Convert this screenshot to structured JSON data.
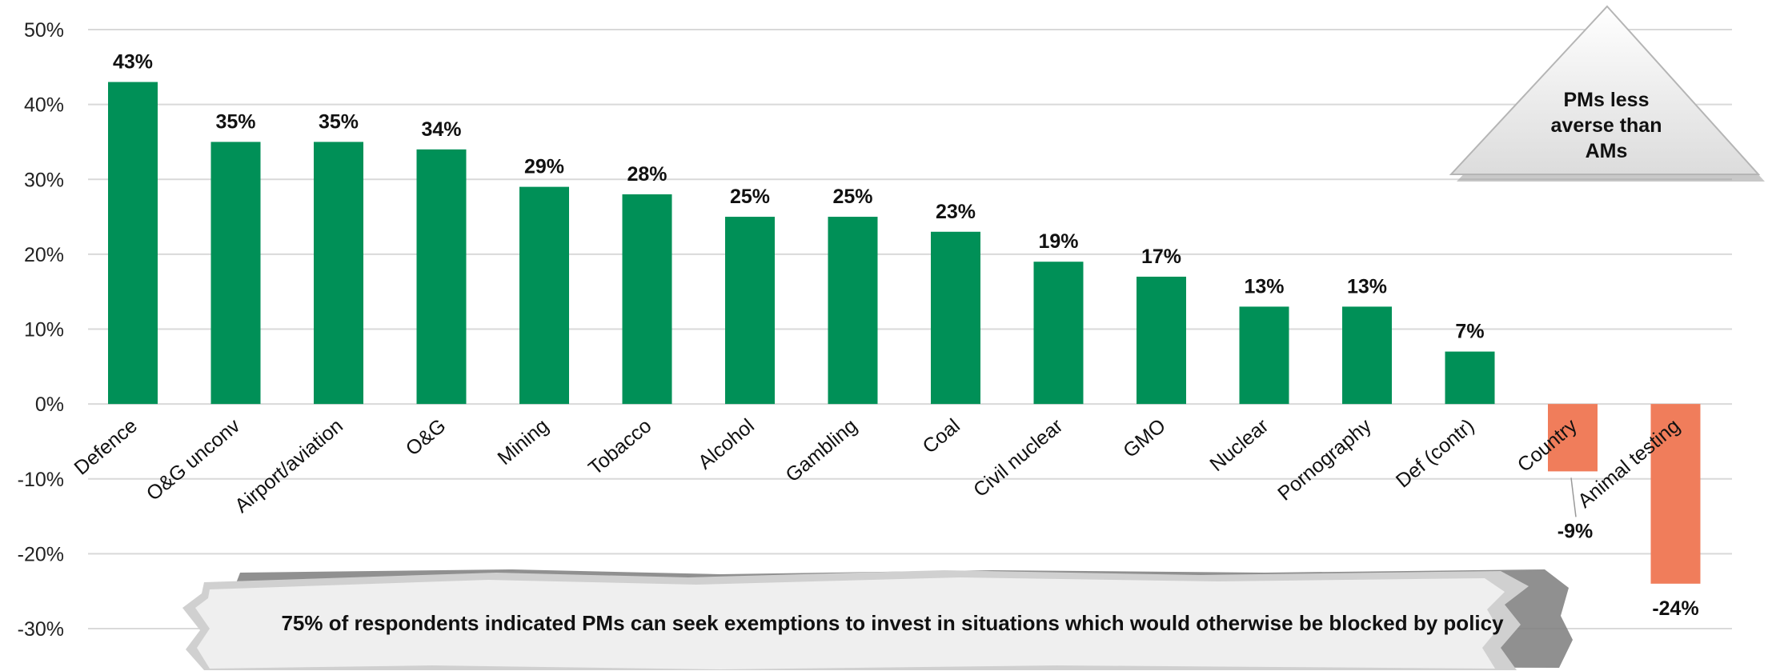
{
  "chart_data": {
    "type": "bar",
    "categories": [
      "Defence",
      "O&G unconv",
      "Airport/aviation",
      "O&G",
      "Mining",
      "Tobacco",
      "Alcohol",
      "Gambling",
      "Coal",
      "Civil nuclear",
      "GMO",
      "Nuclear",
      "Pornography",
      "Def (contr)",
      "Country",
      "Animal testing"
    ],
    "values": [
      43,
      35,
      35,
      34,
      29,
      28,
      25,
      25,
      23,
      19,
      17,
      13,
      13,
      7,
      -9,
      -24
    ],
    "value_labels": [
      "43%",
      "35%",
      "35%",
      "34%",
      "29%",
      "28%",
      "25%",
      "25%",
      "23%",
      "19%",
      "17%",
      "13%",
      "13%",
      "7%",
      "-9%",
      "-24%"
    ],
    "ylim": [
      -30,
      50
    ],
    "yticks": [
      50,
      40,
      30,
      20,
      10,
      0,
      -10,
      -20,
      -30
    ],
    "ytick_labels": [
      "50%",
      "40%",
      "30%",
      "20%",
      "10%",
      "0%",
      "-10%",
      "-20%",
      "-30%"
    ],
    "grid": true,
    "colors": {
      "positive": "#009057",
      "negative": "#f07d5b",
      "grid": "#d9d9d9"
    },
    "annotations": {
      "triangle_callout": [
        "PMs less",
        "averse than",
        "AMs"
      ],
      "banner": "75% of respondents indicated PMs can seek exemptions to invest in situations which would otherwise be blocked by policy"
    }
  }
}
